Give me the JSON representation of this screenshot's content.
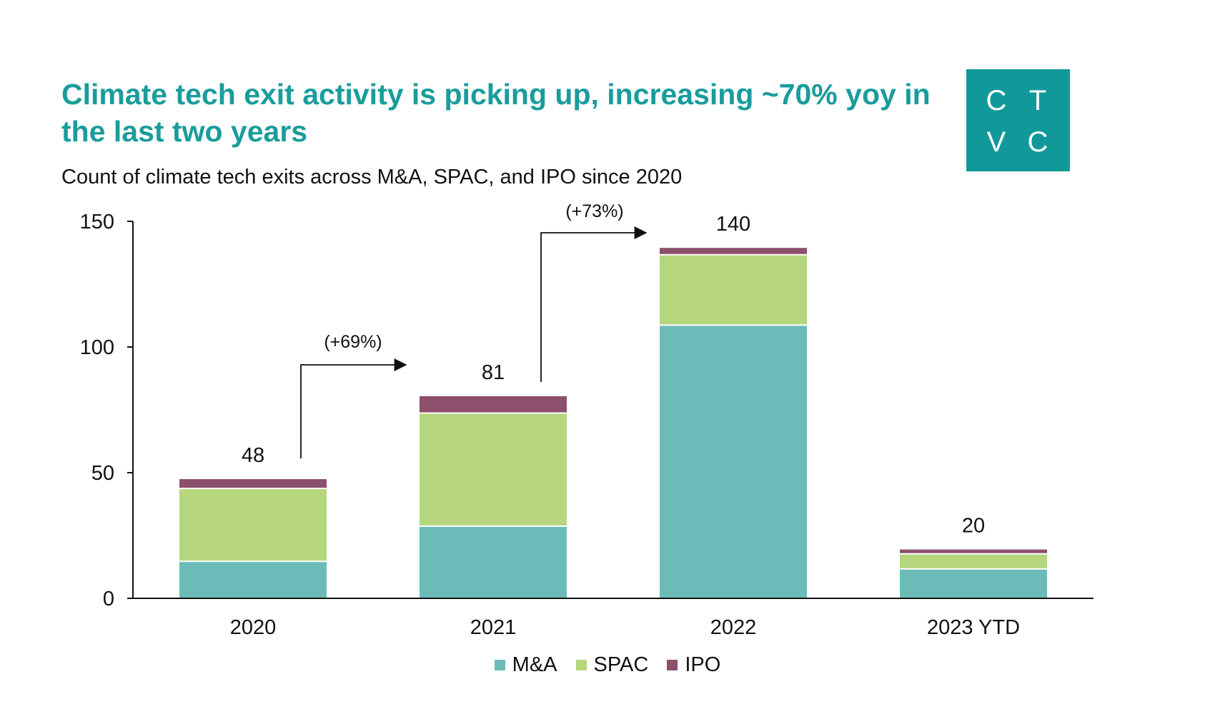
{
  "title": "Climate tech exit activity is picking up, increasing ~70% yoy in the last two years",
  "subtitle": "Count of climate tech exits across M&A, SPAC, and IPO since 2020",
  "logo": {
    "letters": [
      "C",
      "T",
      "V",
      "C"
    ],
    "color": "#11999a"
  },
  "chart_data": {
    "type": "bar",
    "stacked": true,
    "categories": [
      "2020",
      "2021",
      "2022",
      "2023 YTD"
    ],
    "series": [
      {
        "name": "M&A",
        "values": [
          15,
          29,
          109,
          12
        ],
        "color": "#6bbbb9"
      },
      {
        "name": "SPAC",
        "values": [
          29,
          45,
          28,
          6
        ],
        "color": "#b5d67d"
      },
      {
        "name": "IPO",
        "values": [
          4,
          7,
          3,
          2
        ],
        "color": "#8c4f6c"
      }
    ],
    "totals": [
      48,
      81,
      140,
      20
    ],
    "total_labels": [
      "48",
      "81",
      "140",
      "20"
    ],
    "ylim": [
      0,
      150
    ],
    "yticks": [
      0,
      50,
      100,
      150
    ],
    "ytick_labels": [
      "0",
      "50",
      "100",
      "150"
    ],
    "annotations": [
      {
        "text": "(+69%)",
        "from": "2020",
        "to": "2021"
      },
      {
        "text": "(+73%)",
        "from": "2021",
        "to": "2022"
      }
    ],
    "grid": false,
    "legend_position": "bottom"
  }
}
